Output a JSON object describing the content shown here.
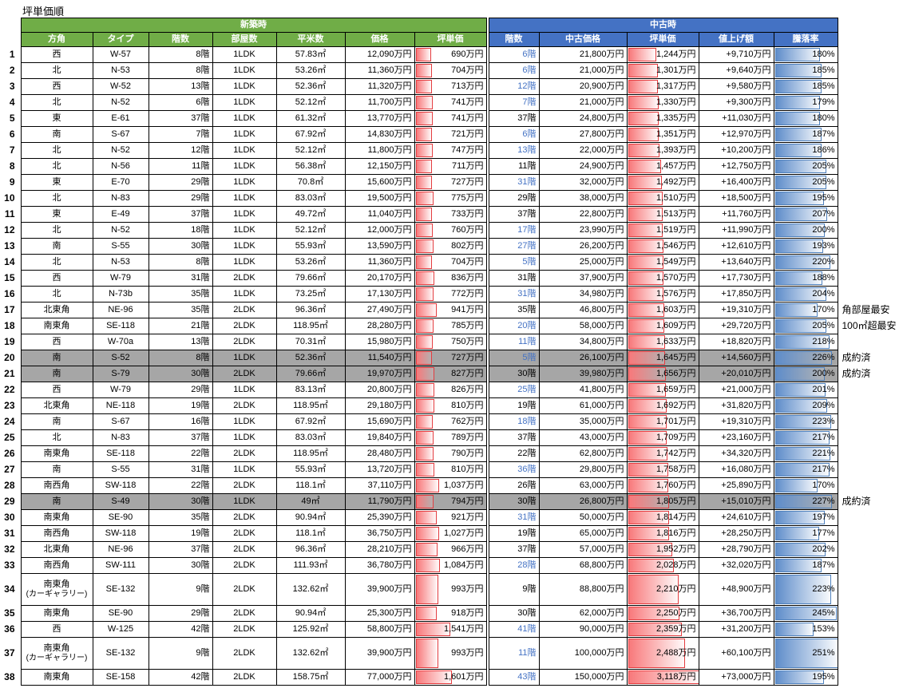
{
  "title": "坪単価順",
  "table": {
    "group_headers": [
      {
        "label": "新築時",
        "color": "#70AD47"
      },
      {
        "label": "中古時",
        "color": "#4472C4"
      }
    ],
    "columns_new": [
      "方角",
      "タイプ",
      "階数",
      "部屋数",
      "平米数",
      "価格",
      "坪単価"
    ],
    "columns_used": [
      "階数",
      "中古価格",
      "坪単価",
      "値上げ額",
      "騰落率"
    ],
    "bar_scale": {
      "tsubo_max": 3118,
      "rate_max": 251
    },
    "colors": {
      "header_green": "#70AD47",
      "header_blue": "#4472C4",
      "sold_row_gray": "#A6A6A6",
      "used_floor_text_blue": "#4472C4",
      "red_bar_border": "#e43c3f",
      "blue_bar_border": "#4f81bd"
    },
    "rows": [
      {
        "n": 1,
        "dir": "西",
        "type": "W-57",
        "fl": "8階",
        "rm": "1LDK",
        "sqm": "57.83㎡",
        "pr": "12,090万円",
        "tb": "690万円",
        "tbv": 690,
        "ufl": "6階",
        "ublue": true,
        "upr": "21,800万円",
        "utb": "1,244万円",
        "utbv": 1244,
        "gain": "+9,710万円",
        "rate": "180%",
        "ratev": 180
      },
      {
        "n": 2,
        "dir": "北",
        "type": "N-53",
        "fl": "8階",
        "rm": "1LDK",
        "sqm": "53.26㎡",
        "pr": "11,360万円",
        "tb": "704万円",
        "tbv": 704,
        "ufl": "6階",
        "ublue": true,
        "upr": "21,000万円",
        "utb": "1,301万円",
        "utbv": 1301,
        "gain": "+9,640万円",
        "rate": "185%",
        "ratev": 185
      },
      {
        "n": 3,
        "dir": "西",
        "type": "W-52",
        "fl": "13階",
        "rm": "1LDK",
        "sqm": "52.36㎡",
        "pr": "11,320万円",
        "tb": "713万円",
        "tbv": 713,
        "ufl": "12階",
        "ublue": true,
        "upr": "20,900万円",
        "utb": "1,317万円",
        "utbv": 1317,
        "gain": "+9,580万円",
        "rate": "185%",
        "ratev": 185
      },
      {
        "n": 4,
        "dir": "北",
        "type": "N-52",
        "fl": "6階",
        "rm": "1LDK",
        "sqm": "52.12㎡",
        "pr": "11,700万円",
        "tb": "741万円",
        "tbv": 741,
        "ufl": "7階",
        "ublue": true,
        "upr": "21,000万円",
        "utb": "1,330万円",
        "utbv": 1330,
        "gain": "+9,300万円",
        "rate": "179%",
        "ratev": 179
      },
      {
        "n": 5,
        "dir": "東",
        "type": "E-61",
        "fl": "37階",
        "rm": "1LDK",
        "sqm": "61.32㎡",
        "pr": "13,770万円",
        "tb": "741万円",
        "tbv": 741,
        "ufl": "37階",
        "ublue": false,
        "upr": "24,800万円",
        "utb": "1,335万円",
        "utbv": 1335,
        "gain": "+11,030万円",
        "rate": "180%",
        "ratev": 180
      },
      {
        "n": 6,
        "dir": "南",
        "type": "S-67",
        "fl": "7階",
        "rm": "1LDK",
        "sqm": "67.92㎡",
        "pr": "14,830万円",
        "tb": "721万円",
        "tbv": 721,
        "ufl": "6階",
        "ublue": true,
        "upr": "27,800万円",
        "utb": "1,351万円",
        "utbv": 1351,
        "gain": "+12,970万円",
        "rate": "187%",
        "ratev": 187
      },
      {
        "n": 7,
        "dir": "北",
        "type": "N-52",
        "fl": "12階",
        "rm": "1LDK",
        "sqm": "52.12㎡",
        "pr": "11,800万円",
        "tb": "747万円",
        "tbv": 747,
        "ufl": "13階",
        "ublue": true,
        "upr": "22,000万円",
        "utb": "1,393万円",
        "utbv": 1393,
        "gain": "+10,200万円",
        "rate": "186%",
        "ratev": 186
      },
      {
        "n": 8,
        "dir": "北",
        "type": "N-56",
        "fl": "11階",
        "rm": "1LDK",
        "sqm": "56.38㎡",
        "pr": "12,150万円",
        "tb": "711万円",
        "tbv": 711,
        "ufl": "11階",
        "ublue": false,
        "upr": "24,900万円",
        "utb": "1,457万円",
        "utbv": 1457,
        "gain": "+12,750万円",
        "rate": "205%",
        "ratev": 205
      },
      {
        "n": 9,
        "dir": "東",
        "type": "E-70",
        "fl": "29階",
        "rm": "1LDK",
        "sqm": "70.8㎡",
        "pr": "15,600万円",
        "tb": "727万円",
        "tbv": 727,
        "ufl": "31階",
        "ublue": true,
        "upr": "32,000万円",
        "utb": "1,492万円",
        "utbv": 1492,
        "gain": "+16,400万円",
        "rate": "205%",
        "ratev": 205
      },
      {
        "n": 10,
        "dir": "北",
        "type": "N-83",
        "fl": "29階",
        "rm": "1LDK",
        "sqm": "83.03㎡",
        "pr": "19,500万円",
        "tb": "775万円",
        "tbv": 775,
        "ufl": "29階",
        "ublue": false,
        "upr": "38,000万円",
        "utb": "1,510万円",
        "utbv": 1510,
        "gain": "+18,500万円",
        "rate": "195%",
        "ratev": 195
      },
      {
        "n": 11,
        "dir": "東",
        "type": "E-49",
        "fl": "37階",
        "rm": "1LDK",
        "sqm": "49.72㎡",
        "pr": "11,040万円",
        "tb": "733万円",
        "tbv": 733,
        "ufl": "37階",
        "ublue": false,
        "upr": "22,800万円",
        "utb": "1,513万円",
        "utbv": 1513,
        "gain": "+11,760万円",
        "rate": "207%",
        "ratev": 207
      },
      {
        "n": 12,
        "dir": "北",
        "type": "N-52",
        "fl": "18階",
        "rm": "1LDK",
        "sqm": "52.12㎡",
        "pr": "12,000万円",
        "tb": "760万円",
        "tbv": 760,
        "ufl": "17階",
        "ublue": true,
        "upr": "23,990万円",
        "utb": "1,519万円",
        "utbv": 1519,
        "gain": "+11,990万円",
        "rate": "200%",
        "ratev": 200
      },
      {
        "n": 13,
        "dir": "南",
        "type": "S-55",
        "fl": "30階",
        "rm": "1LDK",
        "sqm": "55.93㎡",
        "pr": "13,590万円",
        "tb": "802万円",
        "tbv": 802,
        "ufl": "27階",
        "ublue": true,
        "upr": "26,200万円",
        "utb": "1,546万円",
        "utbv": 1546,
        "gain": "+12,610万円",
        "rate": "193%",
        "ratev": 193
      },
      {
        "n": 14,
        "dir": "北",
        "type": "N-53",
        "fl": "8階",
        "rm": "1LDK",
        "sqm": "53.26㎡",
        "pr": "11,360万円",
        "tb": "704万円",
        "tbv": 704,
        "ufl": "5階",
        "ublue": true,
        "upr": "25,000万円",
        "utb": "1,549万円",
        "utbv": 1549,
        "gain": "+13,640万円",
        "rate": "220%",
        "ratev": 220
      },
      {
        "n": 15,
        "dir": "西",
        "type": "W-79",
        "fl": "31階",
        "rm": "2LDK",
        "sqm": "79.66㎡",
        "pr": "20,170万円",
        "tb": "836万円",
        "tbv": 836,
        "ufl": "31階",
        "ublue": false,
        "upr": "37,900万円",
        "utb": "1,570万円",
        "utbv": 1570,
        "gain": "+17,730万円",
        "rate": "188%",
        "ratev": 188
      },
      {
        "n": 16,
        "dir": "北",
        "type": "N-73b",
        "fl": "35階",
        "rm": "1LDK",
        "sqm": "73.25㎡",
        "pr": "17,130万円",
        "tb": "772万円",
        "tbv": 772,
        "ufl": "31階",
        "ublue": true,
        "upr": "34,980万円",
        "utb": "1,576万円",
        "utbv": 1576,
        "gain": "+17,850万円",
        "rate": "204%",
        "ratev": 204
      },
      {
        "n": 17,
        "dir": "北東角",
        "type": "NE-96",
        "fl": "35階",
        "rm": "2LDK",
        "sqm": "96.36㎡",
        "pr": "27,490万円",
        "tb": "941万円",
        "tbv": 941,
        "ufl": "35階",
        "ublue": false,
        "upr": "46,800万円",
        "utb": "1,603万円",
        "utbv": 1603,
        "gain": "+19,310万円",
        "rate": "170%",
        "ratev": 170,
        "note": "角部屋最安"
      },
      {
        "n": 18,
        "dir": "南東角",
        "type": "SE-118",
        "fl": "21階",
        "rm": "2LDK",
        "sqm": "118.95㎡",
        "pr": "28,280万円",
        "tb": "785万円",
        "tbv": 785,
        "ufl": "20階",
        "ublue": true,
        "upr": "58,000万円",
        "utb": "1,609万円",
        "utbv": 1609,
        "gain": "+29,720万円",
        "rate": "205%",
        "ratev": 205,
        "note": "100㎡超最安"
      },
      {
        "n": 19,
        "dir": "西",
        "type": "W-70a",
        "fl": "13階",
        "rm": "2LDK",
        "sqm": "70.31㎡",
        "pr": "15,980万円",
        "tb": "750万円",
        "tbv": 750,
        "ufl": "11階",
        "ublue": true,
        "upr": "34,800万円",
        "utb": "1,633万円",
        "utbv": 1633,
        "gain": "+18,820万円",
        "rate": "218%",
        "ratev": 218
      },
      {
        "n": 20,
        "dir": "南",
        "type": "S-52",
        "fl": "8階",
        "rm": "1LDK",
        "sqm": "52.36㎡",
        "pr": "11,540万円",
        "tb": "727万円",
        "tbv": 727,
        "ufl": "5階",
        "ublue": true,
        "upr": "26,100万円",
        "utb": "1,645万円",
        "utbv": 1645,
        "gain": "+14,560万円",
        "rate": "226%",
        "ratev": 226,
        "sold": true,
        "note": "成約済"
      },
      {
        "n": 21,
        "dir": "南",
        "type": "S-79",
        "fl": "30階",
        "rm": "2LDK",
        "sqm": "79.66㎡",
        "pr": "19,970万円",
        "tb": "827万円",
        "tbv": 827,
        "ufl": "30階",
        "ublue": false,
        "upr": "39,980万円",
        "utb": "1,656万円",
        "utbv": 1656,
        "gain": "+20,010万円",
        "rate": "200%",
        "ratev": 200,
        "sold": true,
        "note": "成約済"
      },
      {
        "n": 22,
        "dir": "西",
        "type": "W-79",
        "fl": "29階",
        "rm": "1LDK",
        "sqm": "83.13㎡",
        "pr": "20,800万円",
        "tb": "826万円",
        "tbv": 826,
        "ufl": "25階",
        "ublue": true,
        "upr": "41,800万円",
        "utb": "1,659万円",
        "utbv": 1659,
        "gain": "+21,000万円",
        "rate": "201%",
        "ratev": 201
      },
      {
        "n": 23,
        "dir": "北東角",
        "type": "NE-118",
        "fl": "19階",
        "rm": "2LDK",
        "sqm": "118.95㎡",
        "pr": "29,180万円",
        "tb": "810万円",
        "tbv": 810,
        "ufl": "19階",
        "ublue": false,
        "upr": "61,000万円",
        "utb": "1,692万円",
        "utbv": 1692,
        "gain": "+31,820万円",
        "rate": "209%",
        "ratev": 209
      },
      {
        "n": 24,
        "dir": "南",
        "type": "S-67",
        "fl": "16階",
        "rm": "1LDK",
        "sqm": "67.92㎡",
        "pr": "15,690万円",
        "tb": "762万円",
        "tbv": 762,
        "ufl": "18階",
        "ublue": true,
        "upr": "35,000万円",
        "utb": "1,701万円",
        "utbv": 1701,
        "gain": "+19,310万円",
        "rate": "223%",
        "ratev": 223
      },
      {
        "n": 25,
        "dir": "北",
        "type": "N-83",
        "fl": "37階",
        "rm": "1LDK",
        "sqm": "83.03㎡",
        "pr": "19,840万円",
        "tb": "789万円",
        "tbv": 789,
        "ufl": "37階",
        "ublue": false,
        "upr": "43,000万円",
        "utb": "1,709万円",
        "utbv": 1709,
        "gain": "+23,160万円",
        "rate": "217%",
        "ratev": 217
      },
      {
        "n": 26,
        "dir": "南東角",
        "type": "SE-118",
        "fl": "22階",
        "rm": "2LDK",
        "sqm": "118.95㎡",
        "pr": "28,480万円",
        "tb": "790万円",
        "tbv": 790,
        "ufl": "22階",
        "ublue": false,
        "upr": "62,800万円",
        "utb": "1,742万円",
        "utbv": 1742,
        "gain": "+34,320万円",
        "rate": "221%",
        "ratev": 221
      },
      {
        "n": 27,
        "dir": "南",
        "type": "S-55",
        "fl": "31階",
        "rm": "1LDK",
        "sqm": "55.93㎡",
        "pr": "13,720万円",
        "tb": "810万円",
        "tbv": 810,
        "ufl": "36階",
        "ublue": true,
        "upr": "29,800万円",
        "utb": "1,758万円",
        "utbv": 1758,
        "gain": "+16,080万円",
        "rate": "217%",
        "ratev": 217
      },
      {
        "n": 28,
        "dir": "南西角",
        "type": "SW-118",
        "fl": "22階",
        "rm": "2LDK",
        "sqm": "118.1㎡",
        "pr": "37,110万円",
        "tb": "1,037万円",
        "tbv": 1037,
        "ufl": "26階",
        "ublue": false,
        "upr": "63,000万円",
        "utb": "1,760万円",
        "utbv": 1760,
        "gain": "+25,890万円",
        "rate": "170%",
        "ratev": 170
      },
      {
        "n": 29,
        "dir": "南",
        "type": "S-49",
        "fl": "30階",
        "rm": "1LDK",
        "sqm": "49㎡",
        "pr": "11,790万円",
        "tb": "794万円",
        "tbv": 794,
        "ufl": "30階",
        "ublue": false,
        "upr": "26,800万円",
        "utb": "1,805万円",
        "utbv": 1805,
        "gain": "+15,010万円",
        "rate": "227%",
        "ratev": 227,
        "sold": true,
        "note": "成約済"
      },
      {
        "n": 30,
        "dir": "南東角",
        "type": "SE-90",
        "fl": "35階",
        "rm": "2LDK",
        "sqm": "90.94㎡",
        "pr": "25,390万円",
        "tb": "921万円",
        "tbv": 921,
        "ufl": "31階",
        "ublue": true,
        "upr": "50,000万円",
        "utb": "1,814万円",
        "utbv": 1814,
        "gain": "+24,610万円",
        "rate": "197%",
        "ratev": 197
      },
      {
        "n": 31,
        "dir": "南西角",
        "type": "SW-118",
        "fl": "19階",
        "rm": "2LDK",
        "sqm": "118.1㎡",
        "pr": "36,750万円",
        "tb": "1,027万円",
        "tbv": 1027,
        "ufl": "19階",
        "ublue": false,
        "upr": "65,000万円",
        "utb": "1,816万円",
        "utbv": 1816,
        "gain": "+28,250万円",
        "rate": "177%",
        "ratev": 177
      },
      {
        "n": 32,
        "dir": "北東角",
        "type": "NE-96",
        "fl": "37階",
        "rm": "2LDK",
        "sqm": "96.36㎡",
        "pr": "28,210万円",
        "tb": "966万円",
        "tbv": 966,
        "ufl": "37階",
        "ublue": false,
        "upr": "57,000万円",
        "utb": "1,952万円",
        "utbv": 1952,
        "gain": "+28,790万円",
        "rate": "202%",
        "ratev": 202
      },
      {
        "n": 33,
        "dir": "南西角",
        "type": "SW-111",
        "fl": "30階",
        "rm": "2LDK",
        "sqm": "111.93㎡",
        "pr": "36,780万円",
        "tb": "1,084万円",
        "tbv": 1084,
        "ufl": "28階",
        "ublue": true,
        "upr": "68,800万円",
        "utb": "2,028万円",
        "utbv": 2028,
        "gain": "+32,020万円",
        "rate": "187%",
        "ratev": 187
      },
      {
        "n": 34,
        "dir": "南東角",
        "dir2": "(カーギャラリー)",
        "type": "SE-132",
        "fl": "9階",
        "rm": "2LDK",
        "sqm": "132.62㎡",
        "pr": "39,900万円",
        "tb": "993万円",
        "tbv": 993,
        "ufl": "9階",
        "ublue": false,
        "upr": "88,800万円",
        "utb": "2,210万円",
        "utbv": 2210,
        "gain": "+48,900万円",
        "rate": "223%",
        "ratev": 223,
        "tall": true
      },
      {
        "n": 35,
        "dir": "南東角",
        "type": "SE-90",
        "fl": "29階",
        "rm": "2LDK",
        "sqm": "90.94㎡",
        "pr": "25,300万円",
        "tb": "918万円",
        "tbv": 918,
        "ufl": "30階",
        "ublue": false,
        "upr": "62,000万円",
        "utb": "2,250万円",
        "utbv": 2250,
        "gain": "+36,700万円",
        "rate": "245%",
        "ratev": 245
      },
      {
        "n": 36,
        "dir": "西",
        "type": "W-125",
        "fl": "42階",
        "rm": "2LDK",
        "sqm": "125.92㎡",
        "pr": "58,800万円",
        "tb": "1,541万円",
        "tbv": 1541,
        "ufl": "41階",
        "ublue": true,
        "upr": "90,000万円",
        "utb": "2,359万円",
        "utbv": 2359,
        "gain": "+31,200万円",
        "rate": "153%",
        "ratev": 153
      },
      {
        "n": 37,
        "dir": "南東角",
        "dir2": "(カーギャラリー)",
        "type": "SE-132",
        "fl": "9階",
        "rm": "2LDK",
        "sqm": "132.62㎡",
        "pr": "39,900万円",
        "tb": "993万円",
        "tbv": 993,
        "ufl": "11階",
        "ublue": true,
        "upr": "100,000万円",
        "utb": "2,488万円",
        "utbv": 2488,
        "gain": "+60,100万円",
        "rate": "251%",
        "ratev": 251,
        "tall": true
      },
      {
        "n": 38,
        "dir": "南東角",
        "type": "SE-158",
        "fl": "42階",
        "rm": "2LDK",
        "sqm": "158.75㎡",
        "pr": "77,000万円",
        "tb": "1,601万円",
        "tbv": 1601,
        "ufl": "43階",
        "ublue": true,
        "upr": "150,000万円",
        "utb": "3,118万円",
        "utbv": 3118,
        "gain": "+73,000万円",
        "rate": "195%",
        "ratev": 195
      }
    ]
  }
}
